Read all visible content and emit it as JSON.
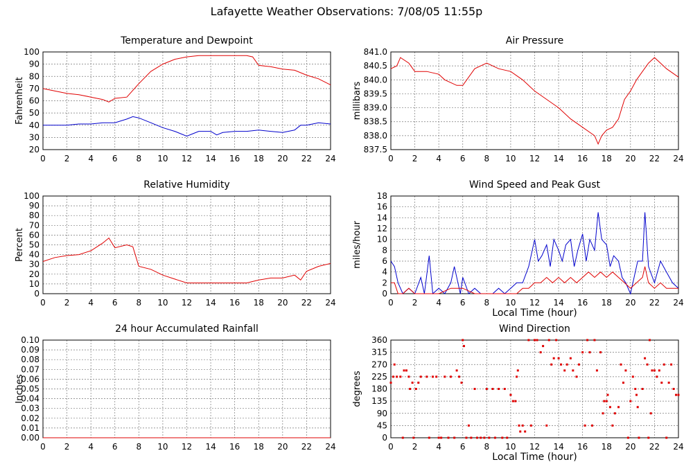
{
  "page_title": "Lafayette Weather Observations: 7/08/05 11:55p",
  "colors": {
    "red": "#e00000",
    "blue": "#0000cc",
    "grid": "#777777"
  },
  "chart_data": [
    {
      "id": "temp",
      "type": "line",
      "title": "Temperature and Dewpoint",
      "xlabel": "",
      "ylabel": "Fahrenheit",
      "xlim": [
        0,
        24
      ],
      "ylim": [
        20,
        100
      ],
      "xticks": [
        0,
        2,
        4,
        6,
        8,
        10,
        12,
        14,
        16,
        18,
        20,
        22,
        24
      ],
      "yticks": [
        20,
        30,
        40,
        50,
        60,
        70,
        80,
        90,
        100
      ],
      "grid": true,
      "series": [
        {
          "color": "red",
          "x": [
            0,
            1,
            2,
            3,
            4,
            5,
            5.5,
            6,
            7,
            8,
            9,
            10,
            11,
            12,
            13,
            14,
            15,
            16,
            17,
            17.5,
            18,
            19,
            20,
            21,
            22,
            23,
            24
          ],
          "y": [
            70,
            68,
            66,
            65,
            63,
            61,
            59,
            62,
            63,
            74,
            84,
            90,
            94,
            96,
            97,
            97,
            97,
            97,
            97,
            96,
            89,
            88,
            86,
            85,
            81,
            78,
            73
          ]
        },
        {
          "color": "blue",
          "x": [
            0,
            1,
            2,
            3,
            4,
            5,
            6,
            7,
            7.5,
            8,
            9,
            10,
            11,
            11.5,
            12,
            12.5,
            13,
            14,
            14.5,
            15,
            16,
            17,
            18,
            19,
            20,
            21,
            21.5,
            22,
            23,
            24
          ],
          "y": [
            40,
            40,
            40,
            41,
            41,
            42,
            42,
            45,
            47,
            46,
            42,
            38,
            35,
            33,
            31,
            33,
            35,
            35,
            32,
            34,
            35,
            35,
            36,
            35,
            34,
            36,
            40,
            40,
            42,
            41
          ]
        }
      ]
    },
    {
      "id": "pressure",
      "type": "line",
      "title": "Air Pressure",
      "xlabel": "",
      "ylabel": "millibars",
      "xlim": [
        0,
        24
      ],
      "ylim": [
        837.5,
        841.0
      ],
      "xticks": [
        0,
        2,
        4,
        6,
        8,
        10,
        12,
        14,
        16,
        18,
        20,
        22,
        24
      ],
      "yticks": [
        "837.5",
        "838.0",
        "838.5",
        "839.0",
        "839.5",
        "840.0",
        "840.5",
        "841.0"
      ],
      "grid": true,
      "series": [
        {
          "color": "red",
          "x": [
            0,
            0.5,
            0.8,
            1.5,
            2,
            3,
            4,
            4.5,
            5,
            5.5,
            6,
            7,
            8,
            9,
            10,
            11,
            12,
            13,
            14,
            15,
            16,
            17,
            17.3,
            17.6,
            18,
            18.5,
            19,
            19.5,
            20,
            20.5,
            21,
            21.5,
            22,
            22.5,
            23,
            24
          ],
          "y": [
            840.4,
            840.5,
            840.8,
            840.6,
            840.3,
            840.3,
            840.2,
            840.0,
            839.9,
            839.8,
            839.8,
            840.4,
            840.6,
            840.4,
            840.3,
            840.0,
            839.6,
            839.3,
            839.0,
            838.6,
            838.3,
            838.0,
            837.7,
            838.0,
            838.2,
            838.3,
            838.6,
            839.3,
            839.6,
            840.0,
            840.3,
            840.6,
            840.8,
            840.6,
            840.4,
            840.1
          ]
        }
      ]
    },
    {
      "id": "humidity",
      "type": "line",
      "title": "Relative Humidity",
      "xlabel": "",
      "ylabel": "Percent",
      "xlim": [
        0,
        24
      ],
      "ylim": [
        0,
        100
      ],
      "xticks": [
        0,
        2,
        4,
        6,
        8,
        10,
        12,
        14,
        16,
        18,
        20,
        22,
        24
      ],
      "yticks": [
        0,
        10,
        20,
        30,
        40,
        50,
        60,
        70,
        80,
        90,
        100
      ],
      "grid": true,
      "series": [
        {
          "color": "red",
          "x": [
            0,
            1,
            2,
            3,
            4,
            5,
            5.5,
            6,
            7,
            7.5,
            8,
            9,
            10,
            11,
            12,
            13,
            14,
            15,
            16,
            17,
            18,
            19,
            20,
            21,
            21.5,
            22,
            23,
            24
          ],
          "y": [
            33,
            37,
            39,
            40,
            44,
            52,
            57,
            47,
            50,
            48,
            28,
            25,
            19,
            15,
            11,
            11,
            11,
            11,
            11,
            11,
            14,
            16,
            16,
            19,
            14,
            23,
            28,
            31
          ]
        }
      ]
    },
    {
      "id": "wind",
      "type": "line",
      "title": "Wind Speed and Peak Gust",
      "xlabel": "Local Time (hour)",
      "ylabel": "miles/hour",
      "xlim": [
        0,
        24
      ],
      "ylim": [
        0,
        18
      ],
      "xticks": [
        0,
        2,
        4,
        6,
        8,
        10,
        12,
        14,
        16,
        18,
        20,
        22,
        24
      ],
      "yticks": [
        0,
        2,
        4,
        6,
        8,
        10,
        12,
        14,
        16,
        18
      ],
      "grid": true,
      "series": [
        {
          "color": "blue",
          "x": [
            0,
            0.3,
            0.6,
            1,
            1.5,
            2,
            2.5,
            2.8,
            3.2,
            3.5,
            4,
            4.5,
            5,
            5.3,
            5.8,
            6,
            6.5,
            7,
            7.5,
            8,
            8.5,
            9,
            9.5,
            10,
            10.5,
            11,
            11.5,
            12,
            12.3,
            12.6,
            13,
            13.3,
            13.6,
            14,
            14.3,
            14.6,
            15,
            15.3,
            15.6,
            16,
            16.3,
            16.6,
            17,
            17.3,
            17.6,
            18,
            18.3,
            18.6,
            19,
            19.3,
            19.6,
            20,
            20.3,
            20.6,
            21,
            21.2,
            21.5,
            22,
            22.5,
            23,
            23.5,
            24
          ],
          "y": [
            6,
            5,
            2,
            0,
            1,
            0,
            3,
            0,
            7,
            0,
            1,
            0,
            2,
            5,
            0,
            3,
            0,
            1,
            0,
            0,
            0,
            1,
            0,
            1,
            2,
            2,
            5,
            10,
            6,
            7,
            9,
            5,
            10,
            8,
            6,
            9,
            10,
            5,
            8,
            11,
            6,
            10,
            8,
            15,
            10,
            9,
            5,
            7,
            6,
            3,
            2,
            0,
            3,
            6,
            6,
            15,
            5,
            2,
            6,
            4,
            2,
            1
          ]
        },
        {
          "color": "red",
          "x": [
            0,
            0.3,
            0.6,
            1,
            1.5,
            2,
            3,
            4,
            5,
            6,
            7,
            8,
            9,
            10,
            10.5,
            11,
            11.5,
            12,
            12.5,
            13,
            13.5,
            14,
            14.5,
            15,
            15.5,
            16,
            16.5,
            17,
            17.5,
            18,
            18.5,
            19,
            19.5,
            20,
            20.5,
            21,
            21.2,
            21.5,
            22,
            22.5,
            23,
            24
          ],
          "y": [
            2,
            2,
            0,
            0,
            1,
            0,
            0,
            0,
            1,
            1,
            0,
            0,
            0,
            0,
            0,
            1,
            1,
            2,
            2,
            3,
            2,
            3,
            2,
            3,
            2,
            3,
            4,
            3,
            4,
            3,
            4,
            3,
            2,
            1,
            2,
            3,
            5,
            2,
            1,
            2,
            1,
            1
          ]
        }
      ]
    },
    {
      "id": "rain",
      "type": "line",
      "title": "24 hour Accumulated Rainfall",
      "xlabel": "",
      "ylabel": "Inches",
      "xlim": [
        0,
        24
      ],
      "ylim": [
        0,
        0.1
      ],
      "xticks": [
        0,
        2,
        4,
        6,
        8,
        10,
        12,
        14,
        16,
        18,
        20,
        22,
        24
      ],
      "yticks": [
        "0.00",
        "0.01",
        "0.02",
        "0.03",
        "0.04",
        "0.05",
        "0.06",
        "0.07",
        "0.08",
        "0.09",
        "0.10"
      ],
      "grid": true,
      "series": [
        {
          "color": "red",
          "x": [
            0,
            24
          ],
          "y": [
            0,
            0
          ]
        }
      ]
    },
    {
      "id": "direction",
      "type": "scatter",
      "title": "Wind Direction",
      "xlabel": "Local Time (hour)",
      "ylabel": "degrees",
      "xlim": [
        0,
        24
      ],
      "ylim": [
        0,
        360
      ],
      "xticks": [
        0,
        2,
        4,
        6,
        8,
        10,
        12,
        14,
        16,
        18,
        20,
        22,
        24
      ],
      "yticks": [
        0,
        45,
        90,
        135,
        180,
        225,
        270,
        315,
        360
      ],
      "grid": true,
      "series": [
        {
          "color": "red",
          "points": [
            [
              0,
              203
            ],
            [
              0.2,
              225
            ],
            [
              0.3,
              270
            ],
            [
              0.5,
              225
            ],
            [
              0.8,
              225
            ],
            [
              1,
              0
            ],
            [
              1.1,
              248
            ],
            [
              1.3,
              248
            ],
            [
              1.5,
              225
            ],
            [
              1.6,
              180
            ],
            [
              1.8,
              203
            ],
            [
              1.9,
              0
            ],
            [
              2.1,
              180
            ],
            [
              2.3,
              203
            ],
            [
              2.5,
              225
            ],
            [
              3,
              225
            ],
            [
              3.2,
              0
            ],
            [
              3.5,
              225
            ],
            [
              3.8,
              225
            ],
            [
              4,
              0
            ],
            [
              4.2,
              0
            ],
            [
              4.5,
              225
            ],
            [
              4.8,
              0
            ],
            [
              5,
              225
            ],
            [
              5.3,
              0
            ],
            [
              5.5,
              248
            ],
            [
              5.7,
              225
            ],
            [
              5.9,
              203
            ],
            [
              6,
              360
            ],
            [
              6.1,
              338
            ],
            [
              6.3,
              0
            ],
            [
              6.5,
              45
            ],
            [
              6.7,
              0
            ],
            [
              7,
              180
            ],
            [
              7.2,
              0
            ],
            [
              7.5,
              0
            ],
            [
              7.8,
              0
            ],
            [
              8,
              180
            ],
            [
              8.2,
              0
            ],
            [
              8.5,
              180
            ],
            [
              8.7,
              0
            ],
            [
              9,
              180
            ],
            [
              9.3,
              0
            ],
            [
              9.5,
              180
            ],
            [
              9.7,
              0
            ],
            [
              10,
              158
            ],
            [
              10.2,
              135
            ],
            [
              10.4,
              135
            ],
            [
              10.5,
              225
            ],
            [
              10.6,
              248
            ],
            [
              10.7,
              45
            ],
            [
              10.8,
              23
            ],
            [
              11,
              45
            ],
            [
              11.2,
              23
            ],
            [
              11.5,
              360
            ],
            [
              11.7,
              45
            ],
            [
              12,
              360
            ],
            [
              12.2,
              360
            ],
            [
              12.5,
              315
            ],
            [
              12.7,
              338
            ],
            [
              13,
              45
            ],
            [
              13.2,
              360
            ],
            [
              13.4,
              270
            ],
            [
              13.6,
              293
            ],
            [
              13.8,
              360
            ],
            [
              14,
              293
            ],
            [
              14.2,
              270
            ],
            [
              14.5,
              248
            ],
            [
              14.7,
              270
            ],
            [
              15,
              293
            ],
            [
              15.2,
              248
            ],
            [
              15.5,
              225
            ],
            [
              15.7,
              270
            ],
            [
              16,
              315
            ],
            [
              16.2,
              45
            ],
            [
              16.4,
              360
            ],
            [
              16.6,
              315
            ],
            [
              16.8,
              45
            ],
            [
              17,
              360
            ],
            [
              17.2,
              248
            ],
            [
              17.5,
              315
            ],
            [
              17.7,
              90
            ],
            [
              17.8,
              135
            ],
            [
              18,
              135
            ],
            [
              18.1,
              158
            ],
            [
              18.3,
              113
            ],
            [
              18.5,
              45
            ],
            [
              18.7,
              90
            ],
            [
              19,
              113
            ],
            [
              19.2,
              270
            ],
            [
              19.4,
              203
            ],
            [
              19.6,
              248
            ],
            [
              19.8,
              0
            ],
            [
              20,
              135
            ],
            [
              20.2,
              225
            ],
            [
              20.4,
              180
            ],
            [
              20.5,
              158
            ],
            [
              20.6,
              113
            ],
            [
              20.7,
              0
            ],
            [
              21,
              180
            ],
            [
              21.2,
              293
            ],
            [
              21.4,
              270
            ],
            [
              21.5,
              0
            ],
            [
              21.6,
              360
            ],
            [
              21.7,
              90
            ],
            [
              21.8,
              248
            ],
            [
              22,
              248
            ],
            [
              22.2,
              225
            ],
            [
              22.4,
              248
            ],
            [
              22.6,
              203
            ],
            [
              22.8,
              270
            ],
            [
              23,
              0
            ],
            [
              23.2,
              203
            ],
            [
              23.4,
              270
            ],
            [
              23.6,
              180
            ],
            [
              23.8,
              158
            ],
            [
              24,
              158
            ]
          ]
        }
      ]
    }
  ]
}
